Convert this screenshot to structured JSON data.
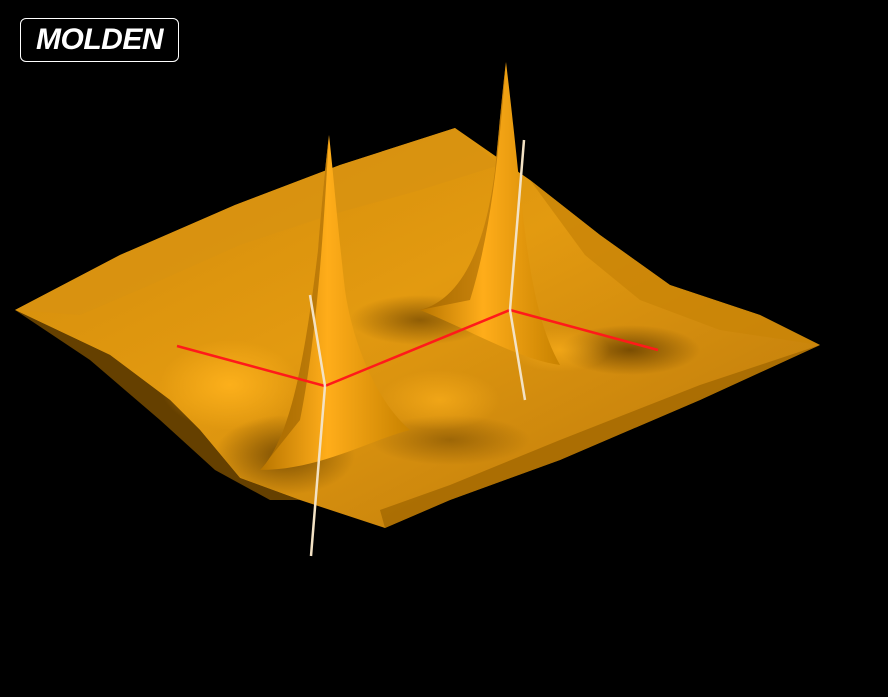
{
  "app": {
    "logo_text": "MOLDEN"
  },
  "scene": {
    "surface_color": "#e39a10",
    "surface_shadow_color": "#a86a00",
    "surface_highlight_color": "#ffaa14",
    "bond_color": "#ff1a1a",
    "axis_color": "#f3e2c4",
    "background_color": "#000000"
  }
}
